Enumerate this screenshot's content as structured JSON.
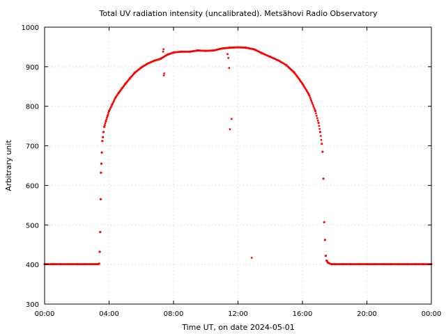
{
  "chart_data": {
    "type": "scatter",
    "title": "Total UV radiation intensity (uncalibrated). Metsähovi Radio Observatory",
    "xlabel": "Time UT, on date 2024-05-01",
    "ylabel": "Arbitrary unit",
    "xlim": [
      0,
      24
    ],
    "ylim": [
      300,
      1000
    ],
    "x_ticks": [
      {
        "value": 0,
        "label": "00:00"
      },
      {
        "value": 4,
        "label": "04:00"
      },
      {
        "value": 8,
        "label": "08:00"
      },
      {
        "value": 12,
        "label": "12:00"
      },
      {
        "value": 16,
        "label": "16:00"
      },
      {
        "value": 20,
        "label": "20:00"
      },
      {
        "value": 24,
        "label": "00:00"
      }
    ],
    "y_ticks": [
      {
        "value": 300,
        "label": "300"
      },
      {
        "value": 400,
        "label": "400"
      },
      {
        "value": 500,
        "label": "500"
      },
      {
        "value": 600,
        "label": "600"
      },
      {
        "value": 700,
        "label": "700"
      },
      {
        "value": 800,
        "label": "800"
      },
      {
        "value": 900,
        "label": "900"
      },
      {
        "value": 1000,
        "label": "1000"
      }
    ],
    "grid": true,
    "marker_color": "#ff0000",
    "series": [
      {
        "x": [
          0,
          0.5,
          1,
          1.5,
          2,
          2.5,
          3,
          3.3,
          3.38,
          3.42,
          3.45,
          3.48,
          3.5,
          3.52,
          3.55,
          3.58,
          3.62,
          3.66,
          3.7,
          3.8,
          3.9,
          4.0,
          4.2,
          4.4,
          4.6,
          4.8,
          5.0,
          5.3,
          5.6,
          6.0,
          6.4,
          6.8,
          7.2,
          7.6,
          8.0,
          8.5,
          9.0,
          9.5,
          10.0,
          10.5,
          11.0,
          11.5,
          12.0,
          12.5,
          13.0,
          13.5,
          14.0,
          14.5,
          15.0,
          15.5,
          16.0,
          16.4,
          16.8,
          17.0,
          17.1,
          17.2,
          17.25,
          17.3,
          17.35,
          17.4,
          17.45,
          17.5,
          17.6,
          17.8,
          18.0,
          18.5,
          19,
          19.5,
          20,
          20.5,
          21,
          21.5,
          22,
          22.5,
          23,
          23.5,
          24
        ],
        "y": [
          401,
          401,
          401,
          401,
          401,
          401,
          401,
          401,
          402,
          432,
          482,
          565,
          632,
          655,
          683,
          712,
          722,
          735,
          748,
          762,
          775,
          788,
          805,
          822,
          834,
          845,
          856,
          871,
          885,
          898,
          908,
          915,
          920,
          930,
          936,
          938,
          938,
          941,
          940,
          941,
          946,
          948,
          949,
          948,
          944,
          934,
          925,
          916,
          904,
          885,
          857,
          830,
          788,
          758,
          735,
          705,
          685,
          617,
          507,
          462,
          422,
          410,
          404,
          401,
          401,
          401,
          401,
          401,
          401,
          401,
          401,
          401,
          401,
          401,
          401,
          401,
          401
        ]
      }
    ],
    "outliers": {
      "x": [
        7.35,
        7.38,
        7.4,
        7.42,
        11.35,
        11.4,
        11.45,
        11.5,
        11.6,
        12.85
      ],
      "y": [
        938,
        944,
        878,
        883,
        932,
        922,
        897,
        742,
        768,
        417
      ]
    }
  }
}
